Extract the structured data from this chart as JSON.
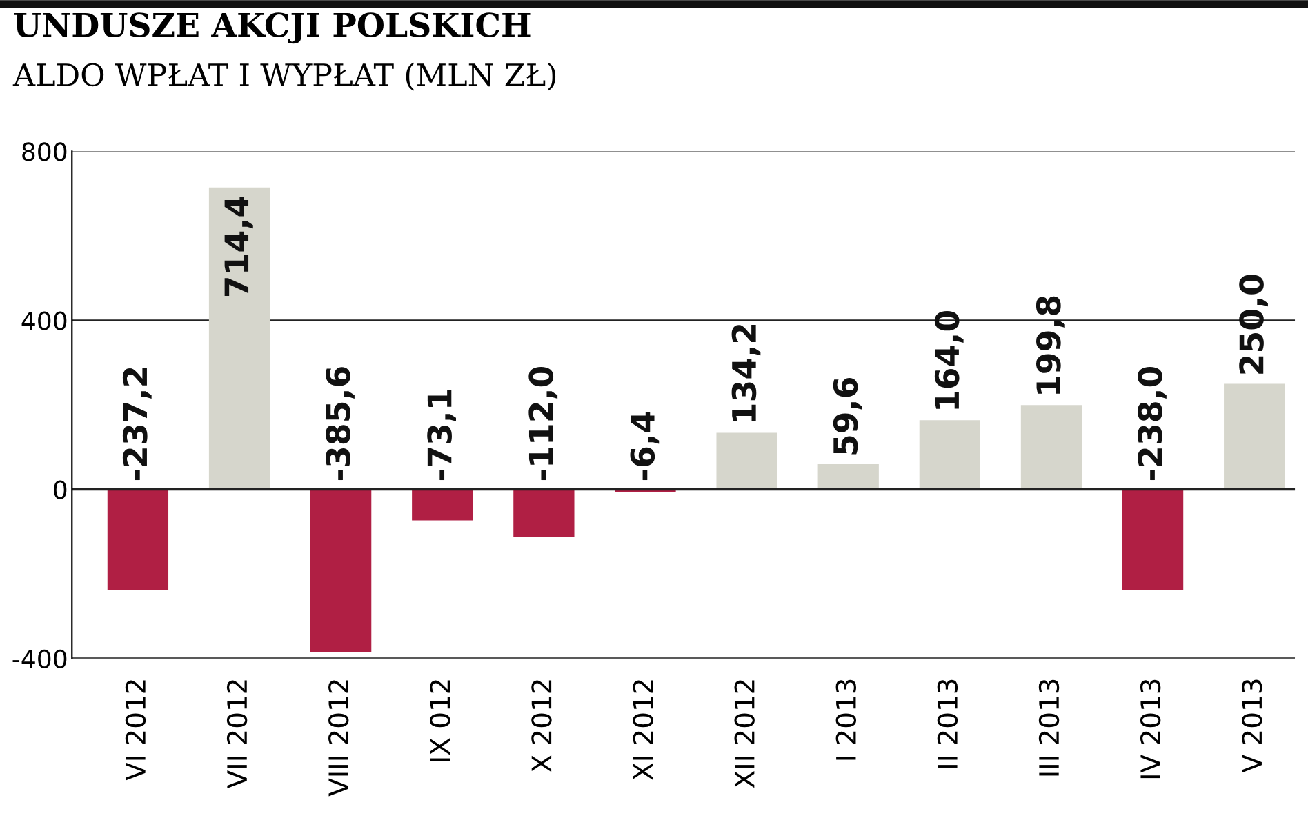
{
  "chart_data": {
    "type": "bar",
    "title": "UNDUSZE AKCJI POLSKICH",
    "subtitle": "ALDO WPŁAT I WYPŁAT (MLN ZŁ)",
    "categories": [
      "VI 2012",
      "VII 2012",
      "VIII 2012",
      "IX 012",
      "X 2012",
      "XI 2012",
      "XII 2012",
      "I 2013",
      "II 2013",
      "III 2013",
      "IV 2013",
      "V 2013"
    ],
    "values": [
      -237.2,
      714.4,
      -385.6,
      -73.1,
      -112.0,
      -6.4,
      134.2,
      59.6,
      164.0,
      199.8,
      -238.0,
      250.0
    ],
    "value_labels": [
      "-237,2",
      "714,4",
      "-385,6",
      "-73,1",
      "-112,0",
      "-6,4",
      "134,2",
      "59,6",
      "164,0",
      "199,8",
      "-238,0",
      "250,0"
    ],
    "colors": [
      "#b01f44",
      "#d6d6cc",
      "#b01f44",
      "#b01f44",
      "#b01f44",
      "#b01f44",
      "#d6d6cc",
      "#d6d6cc",
      "#d6d6cc",
      "#d6d6cc",
      "#b01f44",
      "#d6d6cc"
    ],
    "ylim": [
      -400,
      800
    ],
    "yticks": [
      -400,
      0,
      400,
      800
    ],
    "grid": "y"
  }
}
